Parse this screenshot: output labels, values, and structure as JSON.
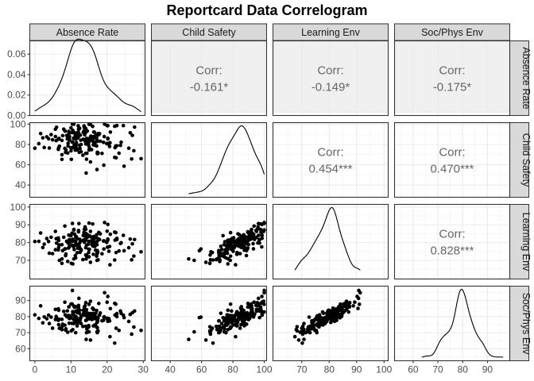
{
  "chart_data": {
    "type": "scatter",
    "title": "Reportcard Data Correlogram",
    "variables": [
      "Absence Rate",
      "Child Safety",
      "Learning Env",
      "Soc/Phys Env"
    ],
    "axis_ranges": {
      "Absence Rate": [
        -1.4,
        30.5
      ],
      "Child Safety": [
        28.0,
        101.5
      ],
      "Learning Env": [
        59.5,
        101.5
      ],
      "Soc/Phys Env": [
        52.5,
        99.0
      ]
    },
    "x_ticks": {
      "Absence Rate": [
        0,
        10,
        20,
        30
      ],
      "Child Safety": [
        40,
        60,
        80,
        100
      ],
      "Learning Env": [
        70,
        80,
        90,
        100
      ],
      "Soc/Phys Env": [
        60,
        70,
        80,
        90
      ]
    },
    "y_ticks": {
      "Absence Rate": [
        "0.00",
        "0.02",
        "0.04",
        "0.06"
      ],
      "Child Safety": [
        "40",
        "60",
        "80",
        "100"
      ],
      "Learning Env": [
        "70",
        "80",
        "90",
        "100"
      ],
      "Soc/Phys Env": [
        "60",
        "70",
        "80",
        "90"
      ]
    },
    "density_ylim": [
      0,
      0.073
    ],
    "correlations": [
      {
        "row": "Absence Rate",
        "col": "Child Safety",
        "label": "Corr:",
        "value": "-0.161*"
      },
      {
        "row": "Absence Rate",
        "col": "Learning Env",
        "label": "Corr:",
        "value": "-0.149*"
      },
      {
        "row": "Absence Rate",
        "col": "Soc/Phys Env",
        "label": "Corr:",
        "value": "-0.175*"
      },
      {
        "row": "Child Safety",
        "col": "Learning Env",
        "label": "Corr:",
        "value": "0.454***"
      },
      {
        "row": "Child Safety",
        "col": "Soc/Phys Env",
        "label": "Corr:",
        "value": "0.470***"
      },
      {
        "row": "Learning Env",
        "col": "Soc/Phys Env",
        "label": "Corr:",
        "value": "0.828***"
      }
    ],
    "grid": true,
    "observations": {
      "absence_rate": [
        10.8,
        0.0,
        26.0,
        4.9,
        14.3,
        17.4,
        11.7,
        10.1,
        20.7,
        19.1,
        13.8,
        8.5,
        12.1,
        6.8,
        18.6,
        15.8,
        12.4,
        14.2,
        14.8,
        2.6,
        24.5,
        12.7,
        20.5,
        14.1,
        24.7,
        9.2,
        14.5,
        12.0,
        13.6,
        13.7,
        13.4,
        23.9,
        12.8,
        16.1,
        14.1,
        22.2,
        12.6,
        27.0,
        20.2,
        16.2,
        7.7,
        9.4,
        10.8,
        15.7,
        23.3,
        22.7,
        22.5,
        5.9,
        4.0,
        20.8,
        27.6,
        10.0,
        11.4,
        5.7,
        6.6,
        12.1,
        12.8,
        17.3,
        17.2,
        17.2,
        4.5,
        10.3,
        17.5,
        5.7,
        13.7,
        11.2,
        9.3,
        14.1,
        10.0,
        10.5,
        9.0,
        6.0,
        20.0,
        9.6,
        14.1,
        14.5,
        1.6,
        1.1,
        6.5,
        11.2,
        16.5,
        11.5,
        13.6,
        10.9,
        17.5,
        22.1,
        16.2,
        13.7,
        11.7,
        3.3,
        17.2,
        8.3,
        15.4,
        16.7,
        20.1,
        14.9,
        8.8,
        11.2,
        2.2,
        3.8,
        9.6,
        16.6,
        11.3,
        10.5,
        10.4,
        18.1,
        15.1,
        12.0,
        9.5,
        9.1,
        14.0,
        14.3,
        15.2,
        15.5,
        7.5,
        15.0,
        16.3,
        7.5,
        20.9,
        8.3,
        16.2,
        11.3,
        14.4,
        11.3,
        15.0,
        26.8,
        12.1,
        8.6,
        10.3,
        11.6,
        16.9,
        8.0,
        15.6,
        10.7,
        13.9,
        12.3,
        22.4,
        7.5,
        11.4,
        13.6,
        10.5,
        17.2,
        19.3,
        14.9,
        19.0,
        16.8,
        16.5,
        12.5,
        9.5,
        11.0,
        10.9,
        9.4,
        17.1,
        8.4,
        14.2,
        16.0,
        10.0,
        11.5,
        6.7,
        13.4,
        16.2,
        23.7,
        22.7,
        12.2,
        19.9,
        14.3,
        12.4,
        17.3,
        26.4,
        13.3,
        14.9,
        9.2,
        11.8,
        19.2,
        16.0,
        17.7,
        6.6,
        11.9,
        20.2,
        27.4,
        29.4,
        6.5,
        20.2,
        10.8,
        11.4,
        17.1,
        15.5,
        17.9,
        22.1,
        15.4
      ],
      "child_safety": [
        100.0,
        76.3,
        76.3,
        84.6,
        65.5,
        71.0,
        91.5,
        65.3,
        78.0,
        59.6,
        89.6,
        72.2,
        89.5,
        78.3,
        71.2,
        83.8,
        95.9,
        92.3,
        84.4,
        77.0,
        98.6,
        84.2,
        80.2,
        80.5,
        58.6,
        78.4,
        84.0,
        98.4,
        98.2,
        97.7,
        85.1,
        82.2,
        80.0,
        83.7,
        95.6,
        76.9,
        89.2,
        89.0,
        98.5,
        82.5,
        88.7,
        92.9,
        77.1,
        74.9,
        71.4,
        78.7,
        66.9,
        83.7,
        76.5,
        81.7,
        97.1,
        73.7,
        80.5,
        87.8,
        85.2,
        91.6,
        72.9,
        71.0,
        83.0,
        55.3,
        89.7,
        91.7,
        90.7,
        95.1,
        96.7,
        88.6,
        89.5,
        71.3,
        96.4,
        76.8,
        85.5,
        97.0,
        98.6,
        84.3,
        92.5,
        93.2,
        90.7,
        80.8,
        85.3,
        90.0,
        79.3,
        81.8,
        92.6,
        79.6,
        71.7,
        97.9,
        87.7,
        84.5,
        74.6,
        87.5,
        83.0,
        76.1,
        99.6,
        86.8,
        81.0,
        82.7,
        88.8,
        74.4,
        86.5,
        85.6,
        87.7,
        80.6,
        75.6,
        93.8,
        100.0,
        83.2,
        76.7,
        86.8,
        85.4,
        71.6,
        82.7,
        82.0,
        86.2,
        88.2,
        65.3,
        99.9,
        92.2,
        84.0,
        92.2,
        93.5,
        79.6,
        77.5,
        71.3,
        85.4,
        74.5,
        65.7,
        94.7,
        74.6,
        82.4,
        85.9,
        89.2,
        95.1,
        84.5,
        86.2,
        96.0,
        72.3,
        78.5,
        69.9,
        90.5,
        93.3,
        82.6,
        84.3,
        100.0,
        78.9,
        82.1,
        87.3,
        92.1,
        76.2,
        87.5,
        91.3,
        79.5,
        90.5,
        86.9,
        93.1,
        51.8,
        85.0,
        76.7,
        86.5,
        85.9,
        92.0,
        86.9,
        79.1,
        98.6,
        96.3,
        80.8,
        86.1,
        79.3,
        72.3,
        91.5,
        69.4,
        81.8,
        81.2,
        75.6,
        87.8,
        97.8,
        89.6,
        76.8,
        87.3,
        85.5,
        73.8,
        66.0,
        75.1,
        86.1,
        91.9,
        78.7,
        78.5,
        86.9,
        90.6,
        67.3,
        62.8
      ],
      "learning_env": [
        87.1,
        80.6,
        77.1,
        73.8,
        73.0,
        74.5,
        82.1,
        68.3,
        77.8,
        76.4,
        81.0,
        72.6,
        86.1,
        70.0,
        73.7,
        78.8,
        79.8,
        82.4,
        79.1,
        79.1,
        84.1,
        80.9,
        75.1,
        77.1,
        75.4,
        80.9,
        84.5,
        77.6,
        85.7,
        87.4,
        81.3,
        79.9,
        75.6,
        78.0,
        87.5,
        81.4,
        76.5,
        79.3,
        90.2,
        73.4,
        75.5,
        79.4,
        70.8,
        80.5,
        75.3,
        81.7,
        74.4,
        82.2,
        74.0,
        67.5,
        81.7,
        83.9,
        82.7,
        76.0,
        77.3,
        86.4,
        76.1,
        75.5,
        73.7,
        70.0,
        83.0,
        85.3,
        82.2,
        86.3,
        81.6,
        72.7,
        76.9,
        73.0,
        84.1,
        68.0,
        80.3,
        79.7,
        86.4,
        81.3,
        85.2,
        83.0,
        85.4,
        80.7,
        82.6,
        78.9,
        80.0,
        79.1,
        83.9,
        76.1,
        70.3,
        85.9,
        81.3,
        80.2,
        74.3,
        82.3,
        80.6,
        76.4,
        86.3,
        78.7,
        77.4,
        74.4,
        80.7,
        78.8,
        77.2,
        80.6,
        81.7,
        77.8,
        71.4,
        81.8,
        90.8,
        84.9,
        76.2,
        78.9,
        79.9,
        69.4,
        81.3,
        78.5,
        83.8,
        83.2,
        68.3,
        91.0,
        83.4,
        78.8,
        84.7,
        89.3,
        82.4,
        80.7,
        72.2,
        83.5,
        72.0,
        70.3,
        86.8,
        73.6,
        78.5,
        78.6,
        82.9,
        83.0,
        80.6,
        77.7,
        88.8,
        77.9,
        85.6,
        70.8,
        82.6,
        84.6,
        80.8,
        78.8,
        91.3,
        76.3,
        80.9,
        75.7,
        82.4,
        74.5,
        77.5,
        84.8,
        78.1,
        84.2,
        84.4,
        76.5,
        70.8,
        81.4,
        80.6,
        83.3,
        78.7,
        84.0,
        79.9,
        79.5,
        82.4,
        90.7,
        80.1,
        83.1,
        81.9,
        74.0,
        82.0,
        70.4,
        80.7,
        80.5,
        78.4,
        80.9,
        90.5,
        85.7,
        81.2,
        76.8,
        81.4,
        72.4,
        74.8,
        75.9,
        82.0,
        87.4,
        79.3,
        72.4,
        80.8,
        81.7,
        70.2,
        68.9
      ],
      "soc_phys_env": [
        82.9,
        81.1,
        77.0,
        72.8,
        70.0,
        77.3,
        82.5,
        71.1,
        77.3,
        79.7,
        81.4,
        71.6,
        86.0,
        72.7,
        77.4,
        78.2,
        84.0,
        83.2,
        82.0,
        79.8,
        80.9,
        79.2,
        78.7,
        77.6,
        79.4,
        80.6,
        80.1,
        82.9,
        83.6,
        86.0,
        81.8,
        82.0,
        80.4,
        79.1,
        88.7,
        81.0,
        78.8,
        82.4,
        92.6,
        74.2,
        75.3,
        80.7,
        75.7,
        79.1,
        71.4,
        80.0,
        72.8,
        80.1,
        75.7,
        67.5,
        83.5,
        79.3,
        77.7,
        78.2,
        75.0,
        84.8,
        75.7,
        70.0,
        76.4,
        70.5,
        79.7,
        87.9,
        78.9,
        84.5,
        84.3,
        79.7,
        79.5,
        74.0,
        87.8,
        71.9,
        83.6,
        79.4,
        89.0,
        78.8,
        82.7,
        79.8,
        86.7,
        78.9,
        84.9,
        78.1,
        79.2,
        76.9,
        81.4,
        80.6,
        71.1,
        88.3,
        81.9,
        81.2,
        74.2,
        78.7,
        76.4,
        74.7,
        89.6,
        78.7,
        79.0,
        74.4,
        80.1,
        77.4,
        76.1,
        80.9,
        80.5,
        74.8,
        70.0,
        81.5,
        96.3,
        82.3,
        78.6,
        77.2,
        79.1,
        70.3,
        81.0,
        77.8,
        81.5,
        80.7,
        73.7,
        87.7,
        84.4,
        78.3,
        85.0,
        89.0,
        78.8,
        78.0,
        72.2,
        86.2,
        70.5,
        69.1,
        87.0,
        72.4,
        75.8,
        79.3,
        82.1,
        83.3,
        79.3,
        78.3,
        86.7,
        82.1,
        87.8,
        71.9,
        80.0,
        80.8,
        83.1,
        79.6,
        94.9,
        73.6,
        77.7,
        74.3,
        80.4,
        77.8,
        75.9,
        85.8,
        76.0,
        86.1,
        83.8,
        81.1,
        65.8,
        85.3,
        79.5,
        83.6,
        78.4,
        84.0,
        81.9,
        83.5,
        81.9,
        91.4,
        78.9,
        84.3,
        77.2,
        73.0,
        81.4,
        73.9,
        80.9,
        80.6,
        75.7,
        79.9,
        85.1,
        88.2,
        84.0,
        77.7,
        78.6,
        73.5,
        71.4,
        77.7,
        77.1,
        86.6,
        77.9,
        73.5,
        82.0,
        80.9,
        63.5,
        65.4
      ]
    }
  }
}
